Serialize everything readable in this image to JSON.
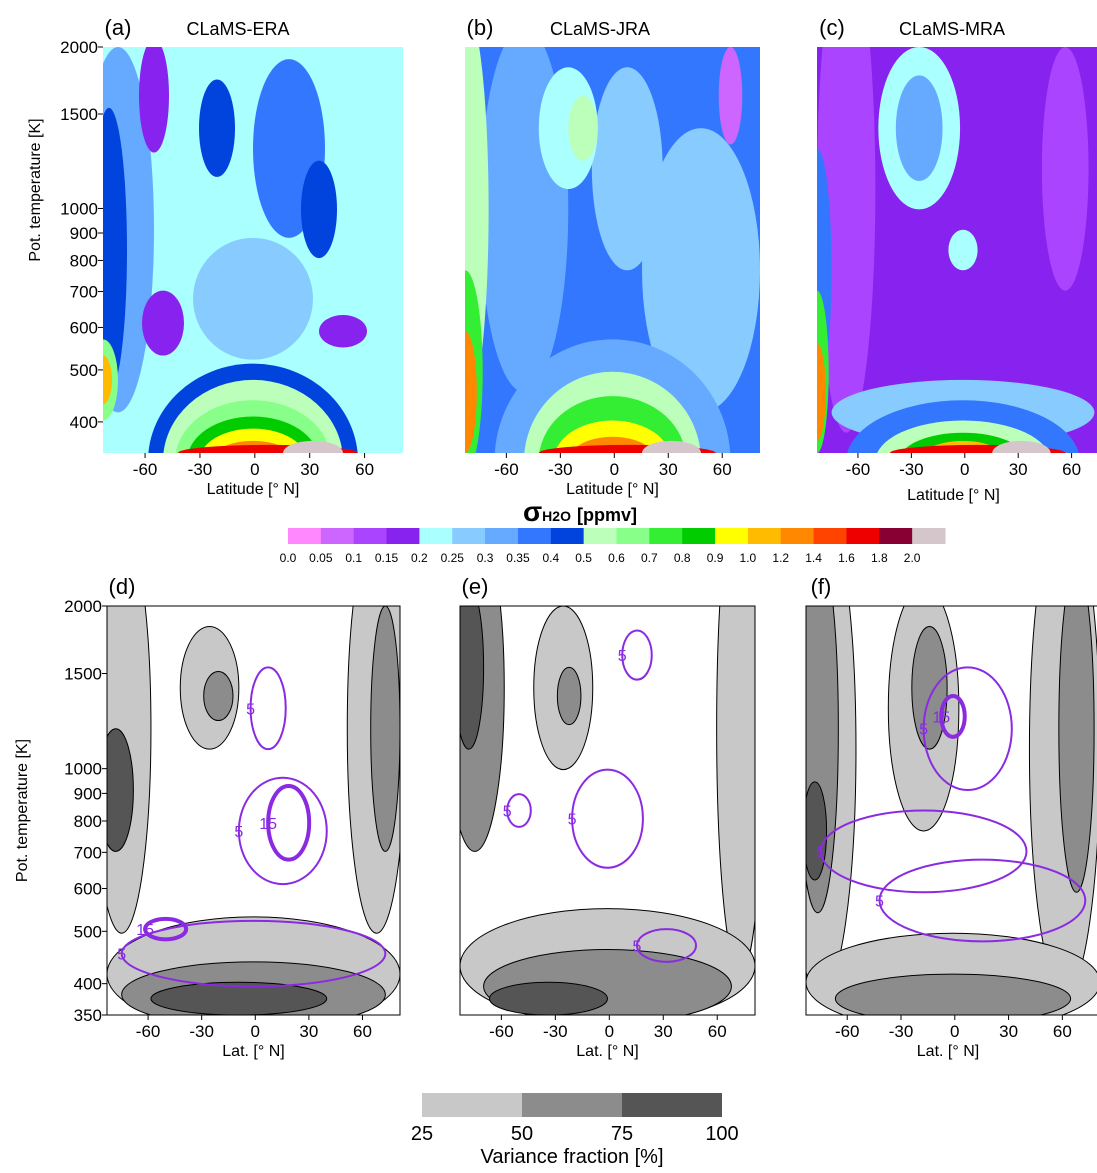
{
  "chart_data": [
    {
      "type": "contour",
      "panel": "(a)",
      "title": "CLaMS-ERA",
      "xlabel": "Latitude [° N]",
      "ylabel": "Pot. temperature [K]",
      "xlim": [
        -83,
        81
      ],
      "xticks": [
        -60,
        -30,
        0,
        30,
        60
      ],
      "ylim": [
        350,
        2000
      ],
      "yticks": [
        400,
        500,
        600,
        700,
        800,
        900,
        1000,
        1500,
        2000
      ],
      "log_y": true
    },
    {
      "type": "contour",
      "panel": "(b)",
      "title": "CLaMS-JRA",
      "xlabel": "Latitude [° N]",
      "xlim": [
        -83,
        81
      ],
      "xticks": [
        -60,
        -30,
        0,
        30,
        60
      ],
      "ylim": [
        350,
        2000
      ],
      "log_y": true
    },
    {
      "type": "contour",
      "panel": "(c)",
      "title": "CLaMS-MRA",
      "xlabel": "Latitude [° N]",
      "xlim": [
        -83,
        81
      ],
      "xticks": [
        -60,
        -30,
        0,
        30,
        60
      ],
      "ylim": [
        350,
        2000
      ],
      "log_y": true
    },
    {
      "type": "variance",
      "panel": "(d)",
      "xlabel": "Lat. [° N]",
      "ylabel": "Pot. temperature [K]",
      "xlim": [
        -83,
        81
      ],
      "xticks": [
        -60,
        -30,
        0,
        30,
        60
      ],
      "ylim": [
        350,
        2000
      ],
      "yticks": [
        350,
        400,
        500,
        600,
        700,
        800,
        900,
        1000,
        1500,
        2000
      ],
      "log_y": true,
      "contour_labels": [
        5,
        5,
        15,
        15,
        5
      ]
    },
    {
      "type": "variance",
      "panel": "(e)",
      "xlabel": "Lat. [° N]",
      "xlim": [
        -83,
        81
      ],
      "xticks": [
        -60,
        -30,
        0,
        30,
        60
      ],
      "ylim": [
        350,
        2000
      ],
      "log_y": true,
      "contour_labels": [
        5,
        5,
        5,
        5
      ]
    },
    {
      "type": "variance",
      "panel": "(f)",
      "xlabel": "Lat. [° N]",
      "xlim": [
        -83,
        81
      ],
      "xticks": [
        -60,
        -30,
        0,
        30,
        60
      ],
      "ylim": [
        350,
        2000
      ],
      "log_y": true,
      "contour_labels": [
        5,
        15,
        5,
        5
      ]
    }
  ],
  "colorbar": {
    "title_symbol": "σ",
    "title_sub": "H2O",
    "title_unit": "[ppmv]",
    "levels": [
      0.0,
      0.05,
      0.1,
      0.15,
      0.2,
      0.25,
      0.3,
      0.35,
      0.4,
      0.5,
      0.6,
      0.7,
      0.8,
      0.9,
      1.0,
      1.2,
      1.4,
      1.6,
      1.8,
      2.0
    ],
    "level_labels": [
      "0.0",
      "0.05",
      "0.1",
      "0.15",
      "0.2",
      "0.25",
      "0.3",
      "0.35",
      "0.4",
      "0.5",
      "0.6",
      "0.7",
      "0.8",
      "0.9",
      "1.0",
      "1.2",
      "1.4",
      "1.6",
      "1.8",
      "2.0"
    ],
    "colors": [
      "#ff88ff",
      "#cc66ff",
      "#aa44ff",
      "#8822ee",
      "#aaffff",
      "#88ccff",
      "#66aaff",
      "#3377ff",
      "#0044dd",
      "#bbffbb",
      "#88ff88",
      "#33ee33",
      "#00cc00",
      "#ffff00",
      "#ffbb00",
      "#ff8800",
      "#ff4400",
      "#ee0000",
      "#880033",
      "#d4c6ca"
    ]
  },
  "variance_colorbar": {
    "title": "Variance fraction [%]",
    "levels": [
      25,
      50,
      75,
      100
    ],
    "colors": [
      "#c8c8c8",
      "#8c8c8c",
      "#555555"
    ]
  }
}
